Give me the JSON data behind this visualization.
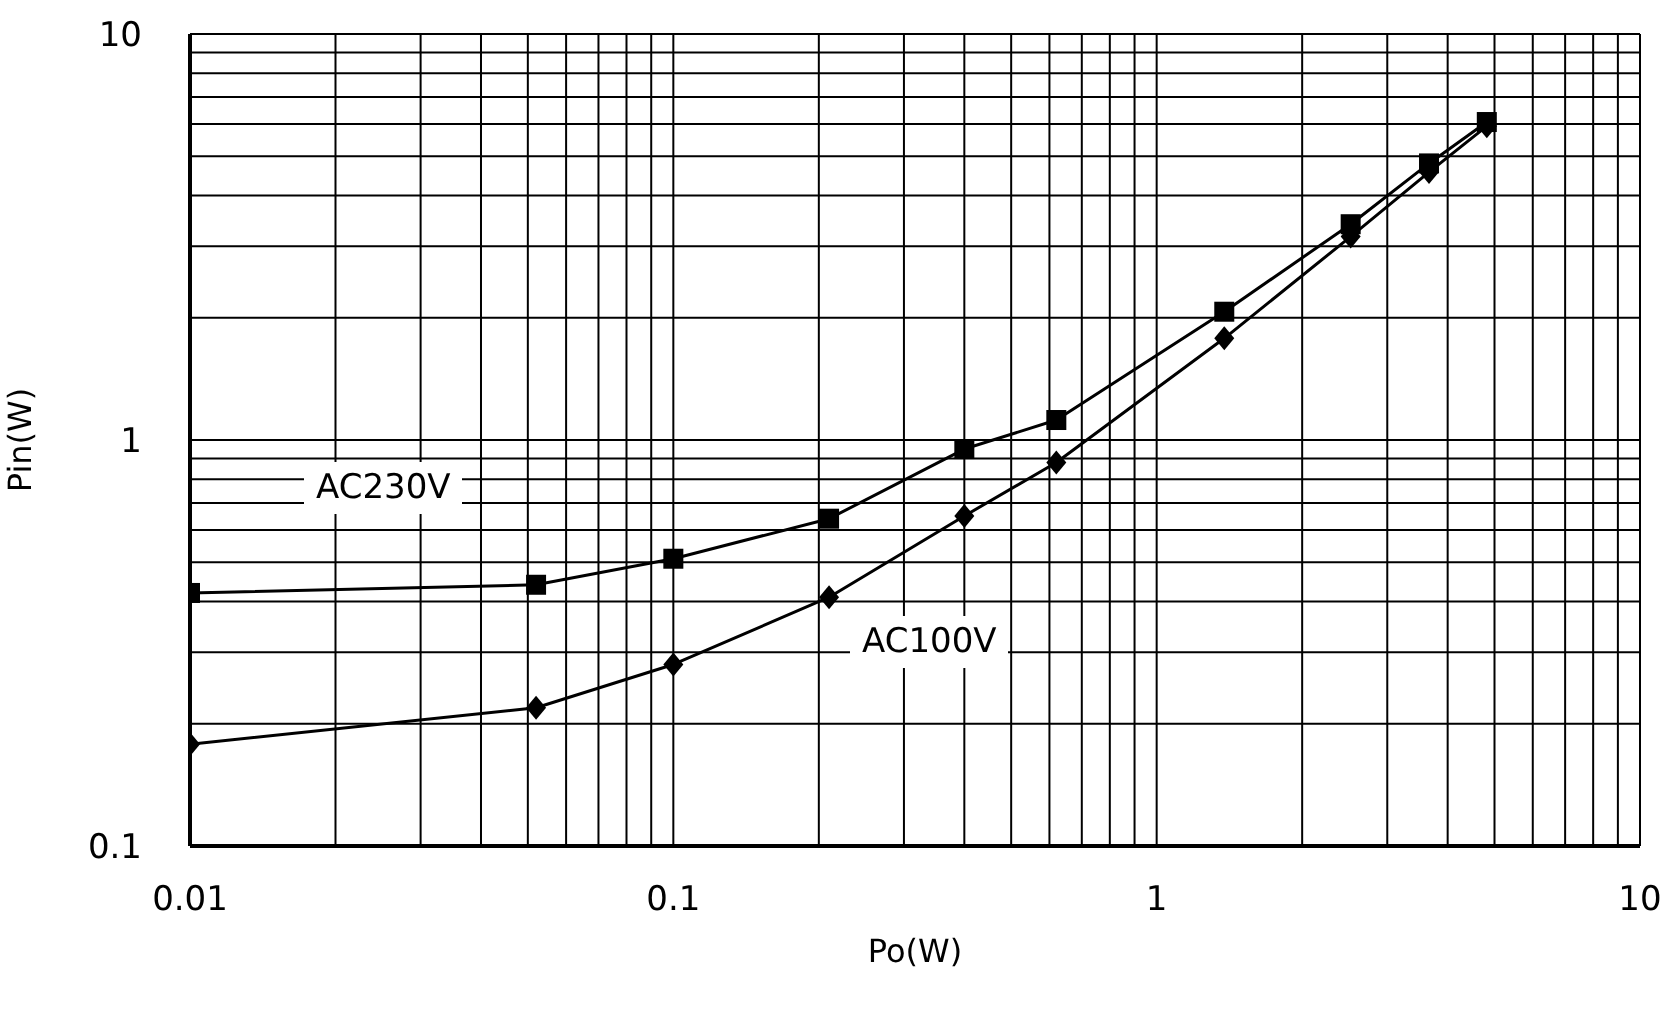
{
  "chart_data": {
    "type": "line",
    "xlabel": "Po(W)",
    "ylabel": "Pin(W)",
    "log": "xy",
    "grid": true,
    "legend": false,
    "xlim": [
      0.01,
      10
    ],
    "ylim": [
      0.1,
      10
    ],
    "xticks": [
      0.01,
      {
        "value": 0.02,
        "label": null
      },
      {
        "value": 0.03,
        "label": null
      },
      {
        "value": 0.04,
        "label": null
      },
      {
        "value": 0.05,
        "label": null
      },
      {
        "value": 0.06,
        "label": null
      },
      {
        "value": 0.07,
        "label": null
      },
      {
        "value": 0.08,
        "label": null
      },
      {
        "value": 0.09,
        "label": null
      },
      0.1,
      {
        "value": 0.2,
        "label": null
      },
      {
        "value": 0.3,
        "label": null
      },
      {
        "value": 0.4,
        "label": null
      },
      {
        "value": 0.5,
        "label": null
      },
      {
        "value": 0.6,
        "label": null
      },
      {
        "value": 0.7,
        "label": null
      },
      {
        "value": 0.8,
        "label": null
      },
      {
        "value": 0.9,
        "label": null
      },
      1,
      {
        "value": 2,
        "label": null
      },
      {
        "value": 3,
        "label": null
      },
      {
        "value": 4,
        "label": null
      },
      {
        "value": 5,
        "label": null
      },
      {
        "value": 6,
        "label": null
      },
      {
        "value": 7,
        "label": null
      },
      {
        "value": 8,
        "label": null
      },
      {
        "value": 9,
        "label": null
      },
      10
    ],
    "yticks": [
      0.1,
      {
        "value": 0.2,
        "label": null
      },
      {
        "value": 0.3,
        "label": null
      },
      {
        "value": 0.4,
        "label": null
      },
      {
        "value": 0.5,
        "label": null
      },
      {
        "value": 0.6,
        "label": null
      },
      {
        "value": 0.7,
        "label": null
      },
      {
        "value": 0.8,
        "label": null
      },
      {
        "value": 0.9,
        "label": null
      },
      1,
      {
        "value": 2,
        "label": null
      },
      {
        "value": 3,
        "label": null
      },
      {
        "value": 4,
        "label": null
      },
      {
        "value": 5,
        "label": null
      },
      {
        "value": 6,
        "label": null
      },
      {
        "value": 7,
        "label": null
      },
      {
        "value": 8,
        "label": null
      },
      {
        "value": 9,
        "label": null
      },
      10
    ],
    "series": [
      {
        "name": "AC230V",
        "color": "#000000",
        "marker": "square",
        "x": [
          0.01,
          0.052,
          0.1,
          0.21,
          0.4,
          0.62,
          1.38,
          2.52,
          3.66,
          4.82
        ],
        "values": [
          0.42,
          0.44,
          0.51,
          0.64,
          0.95,
          1.12,
          2.07,
          3.4,
          4.8,
          6.07
        ]
      },
      {
        "name": "AC100V",
        "color": "#000000",
        "marker": "diamond",
        "x": [
          0.01,
          0.052,
          0.1,
          0.21,
          0.4,
          0.62,
          1.38,
          2.52,
          3.66,
          4.82
        ],
        "values": [
          0.178,
          0.219,
          0.28,
          0.41,
          0.65,
          0.88,
          1.78,
          3.17,
          4.57,
          5.93
        ]
      }
    ]
  }
}
